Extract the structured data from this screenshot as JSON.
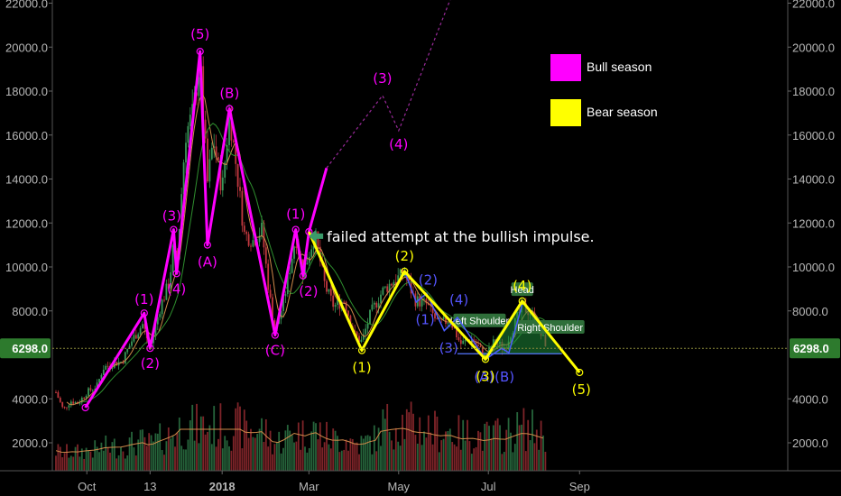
{
  "chart_data": {
    "type": "candlestick",
    "y_ticks": [
      "22000.0",
      "20000.0",
      "18000.0",
      "16000.0",
      "14000.0",
      "12000.0",
      "10000.0",
      "8000.0",
      "6298.0",
      "4000.0",
      "2000.0"
    ],
    "x_ticks": [
      "Oct",
      "13",
      "2018",
      "Mar",
      "May",
      "Jul",
      "Sep"
    ],
    "ylim": [
      0,
      22000
    ],
    "grid": false,
    "current_price": "6298.0",
    "colors": {
      "bull": "#ff00ff",
      "bear": "#ffff00",
      "candle_up": "#3a9a5a",
      "candle_down": "#c2383f",
      "price_tag": "#2d7a2d",
      "ma_green": "#2f8f2f",
      "ma_orange": "#d08a4a",
      "blue_label": "#5555ff"
    },
    "legend": [
      {
        "label": "Bull season",
        "color": "#ff00ff"
      },
      {
        "label": "Bear season",
        "color": "#ffff00"
      }
    ],
    "annotation": "failed attempt at the bullish impulse.",
    "pattern_labels": [
      "Left Shoulder",
      "Head",
      "Right Shoulder"
    ],
    "bull_wave": [
      {
        "label": "(1)",
        "x": "2017-11-09",
        "y": 7900
      },
      {
        "label": "(2)",
        "x": "2017-11-13",
        "y": 6300
      },
      {
        "label": "(3)",
        "x": "2017-11-29",
        "y": 11700
      },
      {
        "label": "(4)",
        "x": "2017-12-01",
        "y": 9700
      },
      {
        "label": "(5)",
        "x": "2017-12-17",
        "y": 19800
      },
      {
        "label": "(A)",
        "x": "2017-12-22",
        "y": 11000
      },
      {
        "label": "(B)",
        "x": "2018-01-06",
        "y": 17200
      },
      {
        "label": "(C)",
        "x": "2018-02-06",
        "y": 6900
      },
      {
        "label": "(1)",
        "x": "2018-02-20",
        "y": 11700
      },
      {
        "label": "(2)",
        "x": "2018-02-25",
        "y": 9600
      }
    ],
    "bull_projection": [
      {
        "label": "(3)",
        "x": "2018-04-20",
        "y": 17800
      },
      {
        "label": "(4)",
        "x": "2018-05-01",
        "y": 16200
      }
    ],
    "bear_wave": [
      {
        "label": "(1)",
        "x": "2018-04-06",
        "y": 6200
      },
      {
        "label": "(2)",
        "x": "2018-05-05",
        "y": 9800
      },
      {
        "label": "(3)",
        "x": "2018-06-29",
        "y": 5800
      },
      {
        "label": "(4)",
        "x": "2018-07-24",
        "y": 8450
      },
      {
        "label": "(5)",
        "x": "2018-09-01",
        "y": 5200
      }
    ],
    "blue_wave_labels": [
      "(1)",
      "(2)",
      "(3)",
      "(4)",
      "(A)",
      "(B)"
    ],
    "price_series": [
      [
        "2017-09-10",
        4300
      ],
      [
        "2017-09-15",
        3500
      ],
      [
        "2017-09-20",
        3900
      ],
      [
        "2017-09-25",
        3800
      ],
      [
        "2017-10-01",
        4300
      ],
      [
        "2017-10-08",
        4600
      ],
      [
        "2017-10-12",
        5400
      ],
      [
        "2017-10-18",
        5600
      ],
      [
        "2017-10-25",
        5700
      ],
      [
        "2017-11-01",
        6700
      ],
      [
        "2017-11-08",
        7400
      ],
      [
        "2017-11-13",
        6300
      ],
      [
        "2017-11-20",
        8200
      ],
      [
        "2017-11-26",
        9300
      ],
      [
        "2017-11-29",
        11000
      ],
      [
        "2017-12-01",
        9900
      ],
      [
        "2017-12-07",
        16000
      ],
      [
        "2017-12-12",
        17000
      ],
      [
        "2017-12-17",
        19300
      ],
      [
        "2017-12-22",
        13800
      ],
      [
        "2017-12-26",
        15800
      ],
      [
        "2018-01-01",
        13500
      ],
      [
        "2018-01-06",
        17000
      ],
      [
        "2018-01-12",
        13800
      ],
      [
        "2018-01-16",
        11500
      ],
      [
        "2018-01-22",
        11200
      ],
      [
        "2018-01-28",
        11700
      ],
      [
        "2018-02-02",
        8800
      ],
      [
        "2018-02-06",
        7000
      ],
      [
        "2018-02-12",
        8500
      ],
      [
        "2018-02-20",
        11400
      ],
      [
        "2018-02-25",
        9700
      ],
      [
        "2018-03-05",
        11500
      ],
      [
        "2018-03-12",
        9100
      ],
      [
        "2018-03-18",
        8200
      ],
      [
        "2018-03-25",
        8500
      ],
      [
        "2018-04-01",
        6900
      ],
      [
        "2018-04-06",
        6600
      ],
      [
        "2018-04-12",
        7900
      ],
      [
        "2018-04-20",
        8900
      ],
      [
        "2018-04-28",
        9400
      ],
      [
        "2018-05-05",
        9700
      ],
      [
        "2018-05-12",
        8500
      ],
      [
        "2018-05-20",
        8300
      ],
      [
        "2018-05-28",
        7400
      ],
      [
        "2018-06-05",
        7600
      ],
      [
        "2018-06-12",
        6500
      ],
      [
        "2018-06-20",
        6700
      ],
      [
        "2018-06-29",
        5900
      ],
      [
        "2018-07-05",
        6600
      ],
      [
        "2018-07-12",
        6300
      ],
      [
        "2018-07-18",
        7300
      ],
      [
        "2018-07-24",
        8200
      ],
      [
        "2018-07-30",
        7900
      ],
      [
        "2018-08-05",
        7000
      ],
      [
        "2018-08-10",
        6400
      ]
    ]
  }
}
